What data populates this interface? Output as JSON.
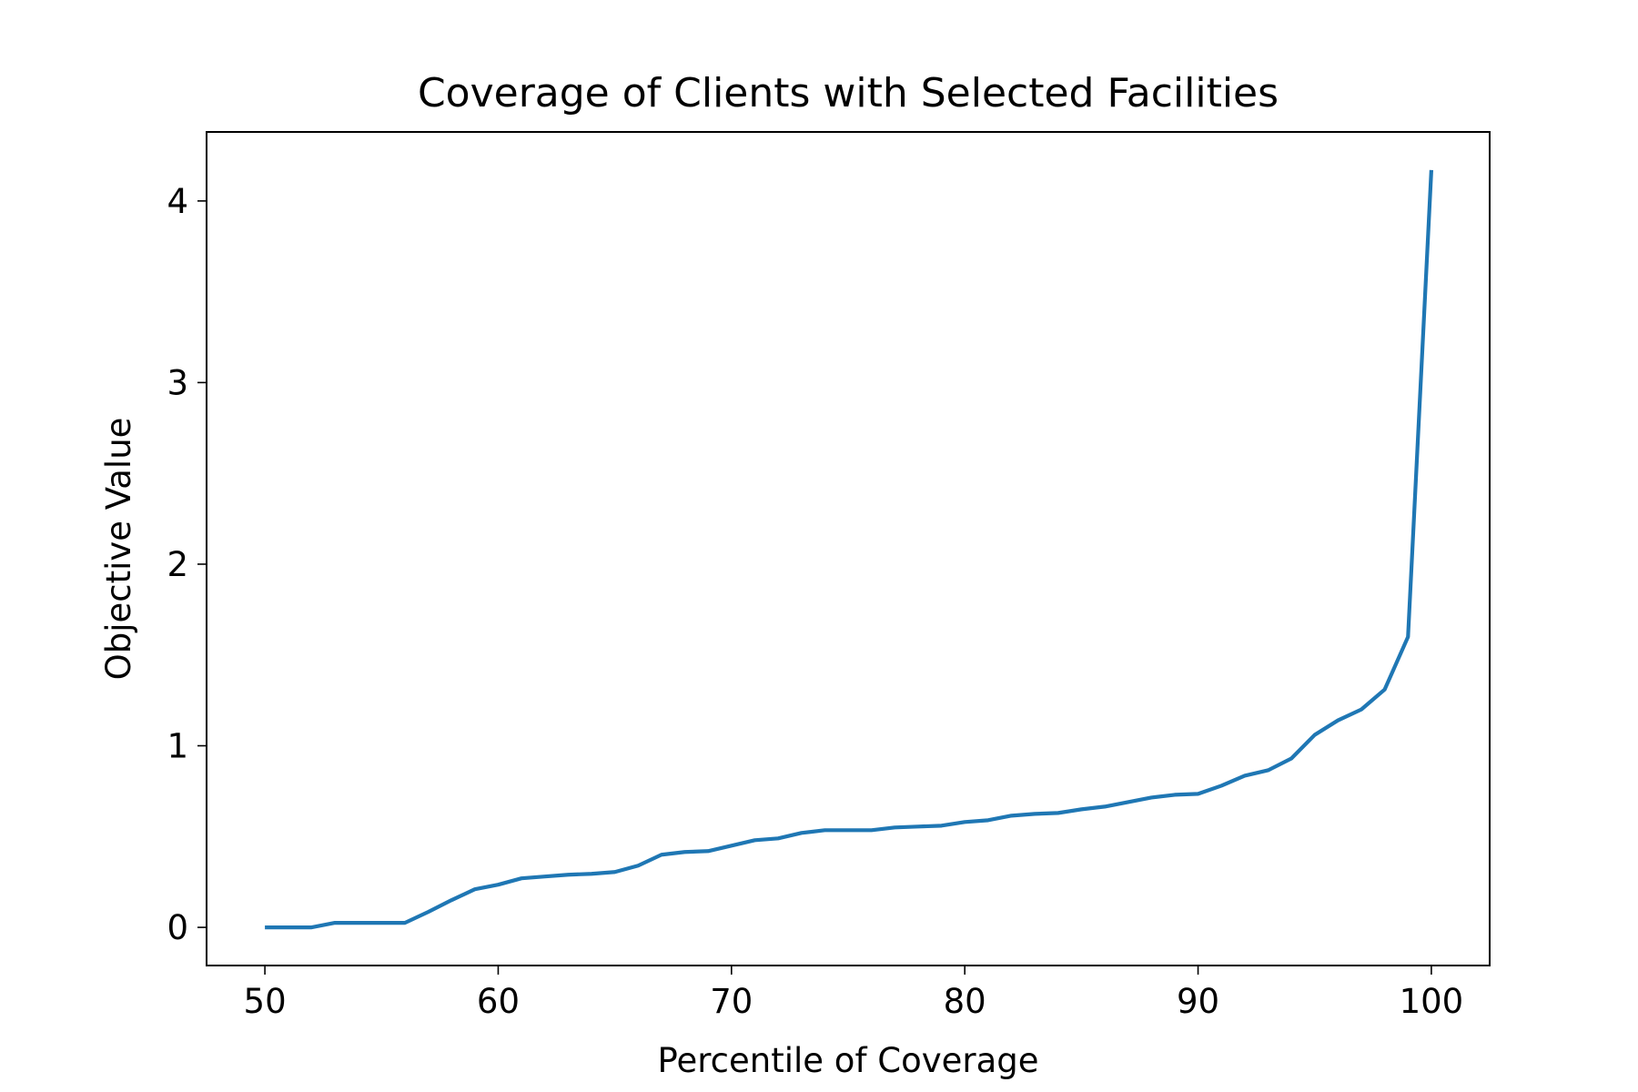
{
  "chart_data": {
    "type": "line",
    "title": "Coverage of Clients with Selected Facilities",
    "xlabel": "Percentile of Coverage",
    "ylabel": "Objective Value",
    "xlim": [
      47.5,
      102.5
    ],
    "ylim": [
      -0.21,
      4.38
    ],
    "xticks": [
      50,
      60,
      70,
      80,
      90,
      100
    ],
    "yticks": [
      0,
      1,
      2,
      3,
      4
    ],
    "grid": false,
    "legend": "none",
    "series": [
      {
        "color": "#1f77b4",
        "x": [
          50,
          51,
          52,
          53,
          54,
          55,
          56,
          57,
          58,
          59,
          60,
          61,
          62,
          63,
          64,
          65,
          66,
          67,
          68,
          69,
          70,
          71,
          72,
          73,
          74,
          75,
          76,
          77,
          78,
          79,
          80,
          81,
          82,
          83,
          84,
          85,
          86,
          87,
          88,
          89,
          90,
          91,
          92,
          93,
          94,
          95,
          96,
          97,
          98,
          99,
          100
        ],
        "y": [
          0.0,
          0.0,
          0.0,
          0.025,
          0.025,
          0.025,
          0.025,
          0.085,
          0.15,
          0.21,
          0.235,
          0.27,
          0.28,
          0.29,
          0.295,
          0.305,
          0.34,
          0.4,
          0.415,
          0.42,
          0.45,
          0.48,
          0.49,
          0.52,
          0.535,
          0.535,
          0.535,
          0.55,
          0.555,
          0.56,
          0.58,
          0.59,
          0.615,
          0.625,
          0.63,
          0.65,
          0.665,
          0.69,
          0.715,
          0.73,
          0.735,
          0.78,
          0.835,
          0.865,
          0.93,
          1.06,
          1.14,
          1.2,
          1.31,
          1.6,
          4.17
        ]
      }
    ]
  }
}
